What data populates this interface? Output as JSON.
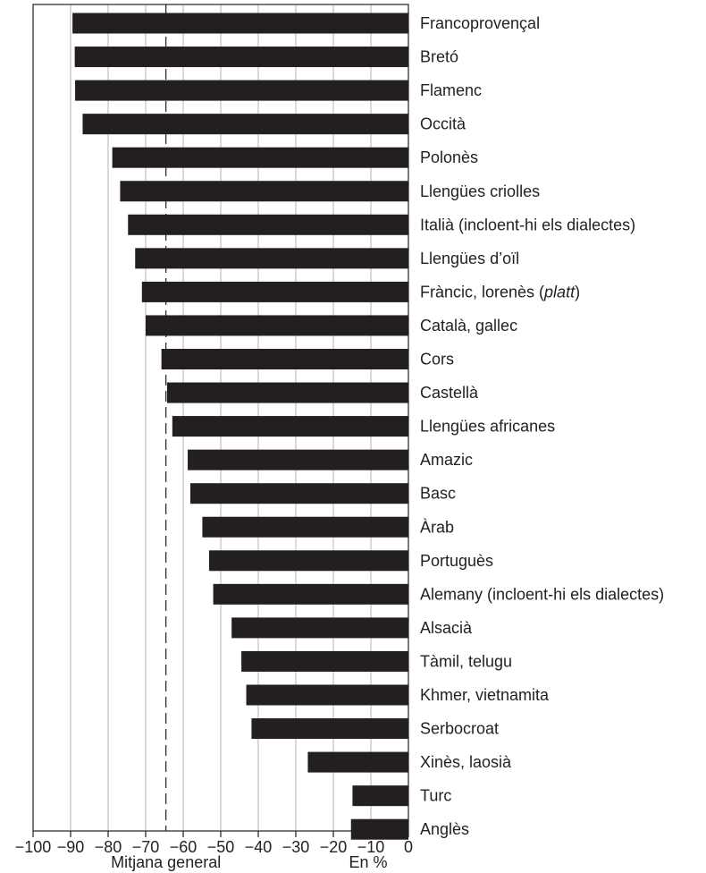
{
  "chart_data": {
    "type": "bar",
    "orientation": "horizontal",
    "categories": [
      "Francoprovençal",
      "Bretó",
      "Flamenc",
      "Occità",
      "Polonès",
      "Llengües criolles",
      "Italià (incloent-hi els dialectes)",
      "Llengües d’oïl",
      "Fràncic, lorenès (platt)",
      "Català, gallec",
      "Cors",
      "Castellà",
      "Llengües africanes",
      "Amazic",
      "Basc",
      "Àrab",
      "Portuguès",
      "Alemany (incloent-hi els dialectes)",
      "Alsacià",
      "Tàmil, telugu",
      "Khmer, vietnamita",
      "Serbocroat",
      "Xinès, laosià",
      "Turc",
      "Anglès"
    ],
    "values": [
      -89.5,
      -88.9,
      -88.8,
      -86.8,
      -78.9,
      -76.8,
      -74.7,
      -72.8,
      -71.0,
      -70.0,
      -65.8,
      -64.3,
      -62.9,
      -58.8,
      -58.1,
      -54.9,
      -53.1,
      -52.0,
      -47.1,
      -44.5,
      -43.2,
      -41.8,
      -26.8,
      -14.9,
      -15.3
    ],
    "xlim": [
      -100,
      0
    ],
    "x_ticks": [
      "−100",
      "−90",
      "−80",
      "−70",
      "−60",
      "−50",
      "−40",
      "−30",
      "−20",
      "−10",
      "0"
    ],
    "reference_line": {
      "value": -64.6,
      "label": "Mitjana general"
    },
    "unit_label": "En %",
    "grid": true,
    "colors": {
      "bar": "#231f20",
      "grid": "#b3b3b3",
      "axis": "#231f20"
    }
  }
}
